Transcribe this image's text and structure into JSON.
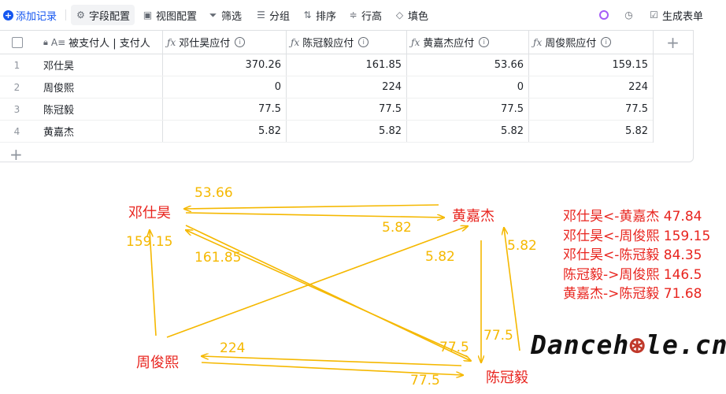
{
  "toolbar": {
    "add_record": "添加记录",
    "field_config": "字段配置",
    "view_config": "视图配置",
    "filter": "筛选",
    "group": "分组",
    "sort": "排序",
    "row_height": "行高",
    "fill_color": "填色",
    "generate_form": "生成表单"
  },
  "table": {
    "columns": [
      "被支付人 | 支付人",
      "邓仕昊应付",
      "陈冠毅应付",
      "黄嘉杰应付",
      "周俊熙应付"
    ],
    "rows": [
      {
        "index": "1",
        "name": "邓仕昊",
        "values": [
          "370.26",
          "161.85",
          "53.66",
          "159.15"
        ]
      },
      {
        "index": "2",
        "name": "周俊熙",
        "values": [
          "0",
          "224",
          "0",
          "224"
        ]
      },
      {
        "index": "3",
        "name": "陈冠毅",
        "values": [
          "77.5",
          "77.5",
          "77.5",
          "77.5"
        ]
      },
      {
        "index": "4",
        "name": "黄嘉杰",
        "values": [
          "5.82",
          "5.82",
          "5.82",
          "5.82"
        ]
      }
    ],
    "add_row_label": "+",
    "add_column_label": "+"
  },
  "diagram": {
    "nodes": {
      "deng": "邓仕昊",
      "huang": "黄嘉杰",
      "zhou": "周俊熙",
      "chen": "陈冠毅"
    },
    "edge_labels": {
      "huang_to_deng": "53.66",
      "deng_to_huang": "5.82",
      "zhou_to_deng": "159.15",
      "chen_to_deng": "161.85",
      "zhou_to_huang": "5.82",
      "chen_to_huang": "5.82",
      "huang_to_chen": "77.5",
      "zhou_to_chen": "77.5",
      "chen_to_zhou": "224",
      "deng_to_chen": "77.5"
    },
    "edge_color": "#f5b800",
    "node_color": "#e8241e"
  },
  "summary": [
    "邓仕昊<-黄嘉杰 47.84",
    "邓仕昊<-周俊熙 159.15",
    "邓仕昊<-陈冠毅 84.35",
    "陈冠毅->周俊熙 146.5",
    "黄嘉杰->陈冠毅 71.68"
  ],
  "watermark": "Dancehole.cn"
}
